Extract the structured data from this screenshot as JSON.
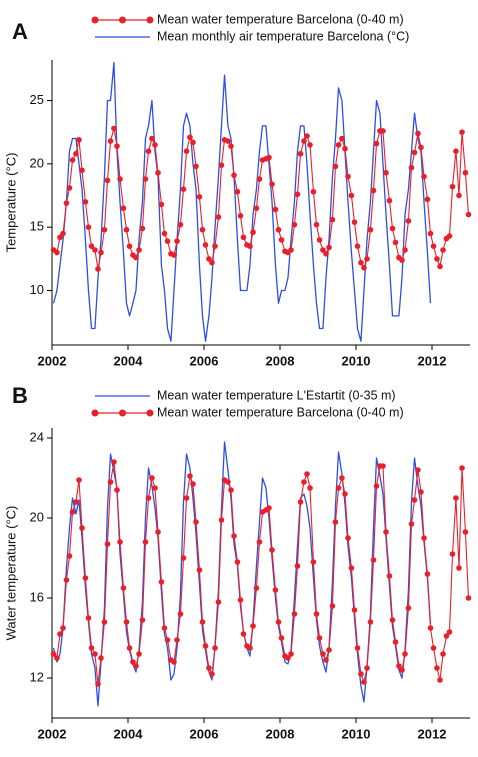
{
  "chart_data": [
    {
      "type": "line",
      "panel_label": "A",
      "y_label": "Temperature (°C)",
      "legend": "top",
      "xlim": [
        2002,
        2013
      ],
      "xticks": [
        2002,
        2004,
        2006,
        2008,
        2010,
        2012
      ],
      "ylim": [
        5.7,
        28.2
      ],
      "yticks": [
        10,
        15,
        20,
        25
      ],
      "x": [
        2002.04,
        2002.13,
        2002.21,
        2002.29,
        2002.38,
        2002.46,
        2002.54,
        2002.63,
        2002.71,
        2002.79,
        2002.88,
        2002.96,
        2003.04,
        2003.13,
        2003.21,
        2003.29,
        2003.38,
        2003.46,
        2003.54,
        2003.63,
        2003.71,
        2003.79,
        2003.88,
        2003.96,
        2004.04,
        2004.13,
        2004.21,
        2004.29,
        2004.38,
        2004.46,
        2004.54,
        2004.63,
        2004.71,
        2004.79,
        2004.88,
        2004.96,
        2005.04,
        2005.13,
        2005.21,
        2005.29,
        2005.38,
        2005.46,
        2005.54,
        2005.63,
        2005.71,
        2005.79,
        2005.88,
        2005.96,
        2006.04,
        2006.13,
        2006.21,
        2006.29,
        2006.38,
        2006.46,
        2006.54,
        2006.63,
        2006.71,
        2006.79,
        2006.88,
        2006.96,
        2007.04,
        2007.13,
        2007.21,
        2007.29,
        2007.38,
        2007.46,
        2007.54,
        2007.63,
        2007.71,
        2007.79,
        2007.88,
        2007.96,
        2008.04,
        2008.13,
        2008.21,
        2008.29,
        2008.38,
        2008.46,
        2008.54,
        2008.63,
        2008.71,
        2008.79,
        2008.88,
        2008.96,
        2009.04,
        2009.13,
        2009.21,
        2009.29,
        2009.38,
        2009.46,
        2009.54,
        2009.63,
        2009.71,
        2009.79,
        2009.88,
        2009.96,
        2010.04,
        2010.13,
        2010.21,
        2010.29,
        2010.38,
        2010.46,
        2010.54,
        2010.63,
        2010.71,
        2010.79,
        2010.88,
        2010.96,
        2011.04,
        2011.13,
        2011.21,
        2011.29,
        2011.38,
        2011.46,
        2011.54,
        2011.63,
        2011.71,
        2011.79,
        2011.88,
        2011.96,
        2012.04,
        2012.13,
        2012.21,
        2012.29,
        2012.38,
        2012.46,
        2012.54,
        2012.63,
        2012.71,
        2012.79,
        2012.88,
        2012.96
      ],
      "series": [
        {
          "name": "Mean water temperature Barcelona (0-40 m)",
          "color": "#e8202a",
          "marker": "circle",
          "values": [
            13.2,
            13.0,
            14.2,
            14.5,
            16.9,
            18.1,
            20.3,
            20.8,
            21.9,
            19.5,
            17,
            15,
            13.5,
            13.2,
            11.7,
            13,
            14.8,
            18.7,
            21.8,
            22.8,
            21.4,
            18.8,
            16.5,
            14.8,
            13.5,
            12.8,
            12.6,
            13.2,
            14.9,
            18.8,
            21,
            22,
            21.5,
            19.3,
            16.8,
            14.5,
            13.9,
            12.9,
            12.8,
            13.9,
            15.2,
            18,
            21,
            22.1,
            21.7,
            19.8,
            17.4,
            14.8,
            13.6,
            12.5,
            12.2,
            13.5,
            15.8,
            19.9,
            21.9,
            21.8,
            21.4,
            19.1,
            17.8,
            15.9,
            14.2,
            13.6,
            13.5,
            14.6,
            16.5,
            18.8,
            20.3,
            20.4,
            20.5,
            18.4,
            16.4,
            14.8,
            14,
            13.1,
            13,
            13.2,
            15.2,
            17.6,
            20.8,
            21.8,
            22.2,
            21.5,
            17.8,
            15.2,
            14,
            13.2,
            12.9,
            13.4,
            15.6,
            19.8,
            21.5,
            22,
            21.2,
            19,
            17.5,
            15.4,
            13.5,
            12.2,
            11.8,
            12.5,
            14.8,
            17.9,
            21.6,
            22.6,
            22.6,
            19.3,
            17.1,
            14.9,
            13.8,
            12.6,
            12.4,
            13.2,
            15.5,
            19.7,
            20.9,
            22.4,
            21.3,
            19,
            17.2,
            14.5,
            13.5,
            12.5,
            11.9,
            13.2,
            14.1,
            14.3,
            18.2,
            21.0,
            17.5,
            22.5,
            19.3,
            16.0
          ]
        },
        {
          "name": "Mean monthly air temperature Barcelona (°C)",
          "color": "#2d4fe0",
          "values": [
            9,
            10,
            12,
            14,
            17,
            21,
            22,
            22,
            20,
            18,
            14,
            10,
            7,
            7,
            11,
            14,
            19,
            25,
            25,
            28,
            21,
            17,
            13,
            9,
            8,
            9,
            10,
            14,
            17,
            22,
            23,
            25,
            21,
            19,
            12,
            10,
            7,
            6,
            10,
            14,
            18,
            23,
            24,
            23,
            20,
            18,
            12,
            8,
            6,
            8,
            11,
            15,
            19,
            23,
            27,
            23,
            22,
            19,
            14,
            10,
            10,
            10,
            12,
            16,
            18,
            21,
            23,
            23,
            20,
            17,
            12,
            9,
            10,
            10,
            11,
            14,
            17,
            21,
            23,
            23,
            20,
            16,
            12,
            9,
            7,
            7,
            11,
            14,
            19,
            22,
            26,
            25,
            21,
            17,
            13,
            10,
            7,
            6,
            10,
            14,
            17,
            21,
            25,
            24,
            20,
            16,
            12,
            8,
            8,
            8,
            11,
            16,
            18,
            21,
            24,
            22,
            21,
            17,
            13,
            9,
            null,
            null,
            null,
            null,
            null,
            null,
            null,
            null,
            null,
            null,
            null,
            null
          ]
        }
      ]
    },
    {
      "type": "line",
      "panel_label": "B",
      "y_label": "Water temperature (°C)",
      "legend": "top",
      "xlim": [
        2002,
        2013
      ],
      "xticks": [
        2002,
        2004,
        2006,
        2008,
        2010,
        2012
      ],
      "ylim": [
        10,
        24.5
      ],
      "yticks": [
        12,
        16,
        20,
        24
      ],
      "x": [
        2002.04,
        2002.13,
        2002.21,
        2002.29,
        2002.38,
        2002.46,
        2002.54,
        2002.63,
        2002.71,
        2002.79,
        2002.88,
        2002.96,
        2003.04,
        2003.13,
        2003.21,
        2003.29,
        2003.38,
        2003.46,
        2003.54,
        2003.63,
        2003.71,
        2003.79,
        2003.88,
        2003.96,
        2004.04,
        2004.13,
        2004.21,
        2004.29,
        2004.38,
        2004.46,
        2004.54,
        2004.63,
        2004.71,
        2004.79,
        2004.88,
        2004.96,
        2005.04,
        2005.13,
        2005.21,
        2005.29,
        2005.38,
        2005.46,
        2005.54,
        2005.63,
        2005.71,
        2005.79,
        2005.88,
        2005.96,
        2006.04,
        2006.13,
        2006.21,
        2006.29,
        2006.38,
        2006.46,
        2006.54,
        2006.63,
        2006.71,
        2006.79,
        2006.88,
        2006.96,
        2007.04,
        2007.13,
        2007.21,
        2007.29,
        2007.38,
        2007.46,
        2007.54,
        2007.63,
        2007.71,
        2007.79,
        2007.88,
        2007.96,
        2008.04,
        2008.13,
        2008.21,
        2008.29,
        2008.38,
        2008.46,
        2008.54,
        2008.63,
        2008.71,
        2008.79,
        2008.88,
        2008.96,
        2009.04,
        2009.13,
        2009.21,
        2009.29,
        2009.38,
        2009.46,
        2009.54,
        2009.63,
        2009.71,
        2009.79,
        2009.88,
        2009.96,
        2010.04,
        2010.13,
        2010.21,
        2010.29,
        2010.38,
        2010.46,
        2010.54,
        2010.63,
        2010.71,
        2010.79,
        2010.88,
        2010.96,
        2011.04,
        2011.13,
        2011.21,
        2011.29,
        2011.38,
        2011.46,
        2011.54,
        2011.63,
        2011.71,
        2011.79,
        2011.88,
        2011.96,
        2012.04,
        2012.13,
        2012.21,
        2012.29,
        2012.38,
        2012.46,
        2012.54,
        2012.63,
        2012.71,
        2012.79,
        2012.88,
        2012.96
      ],
      "series": [
        {
          "name": "Mean water temperature L'Estartit (0-35 m)",
          "color": "#2d4fe0",
          "values": [
            13.5,
            12.8,
            13.2,
            14.5,
            17.5,
            19.5,
            21,
            20.2,
            20.9,
            19,
            16.5,
            14.8,
            13.2,
            12.5,
            10.6,
            12.8,
            15.5,
            20.5,
            23.2,
            22.3,
            21.5,
            18.2,
            16.2,
            14.3,
            13.4,
            12.7,
            12.3,
            13.4,
            15.8,
            20,
            22.5,
            21.6,
            20.5,
            19,
            16.3,
            14.2,
            13.5,
            11.9,
            12.2,
            13.5,
            16.2,
            20.8,
            23.2,
            22.5,
            21,
            19.2,
            16.7,
            14.4,
            13.4,
            12.3,
            11.9,
            13.6,
            16.4,
            20.5,
            23.8,
            22.4,
            21,
            18.7,
            17.6,
            15.6,
            14.3,
            13.5,
            13.1,
            14.8,
            17.6,
            19.8,
            22,
            21.5,
            20,
            18,
            16,
            14.6,
            13.8,
            12.8,
            12.7,
            13.4,
            16,
            18.6,
            21,
            21.2,
            20.6,
            19.5,
            17,
            14.9,
            13.6,
            12.8,
            12.3,
            13.5,
            16.8,
            20.6,
            23.3,
            22.2,
            20.7,
            18.6,
            17,
            15,
            13.2,
            11.6,
            10.8,
            12.6,
            15.2,
            19.5,
            23,
            22.1,
            21.2,
            19,
            16.6,
            14.6,
            13.6,
            12.4,
            12,
            13.4,
            16.4,
            20.8,
            23,
            21.6,
            20.6,
            18.8,
            17,
            14.7,
            null,
            null,
            null,
            null,
            null,
            null,
            null,
            null,
            null,
            null,
            null,
            null
          ]
        },
        {
          "name": "Mean water temperature Barcelona (0-40 m)",
          "color": "#e8202a",
          "marker": "circle",
          "values": [
            13.2,
            13.0,
            14.2,
            14.5,
            16.9,
            18.1,
            20.3,
            20.8,
            21.9,
            19.5,
            17,
            15,
            13.5,
            13.2,
            11.7,
            13,
            14.8,
            18.7,
            21.8,
            22.8,
            21.4,
            18.8,
            16.5,
            14.8,
            13.5,
            12.8,
            12.6,
            13.2,
            14.9,
            18.8,
            21,
            22,
            21.5,
            19.3,
            16.8,
            14.5,
            13.9,
            12.9,
            12.8,
            13.9,
            15.2,
            18,
            21,
            22.1,
            21.7,
            19.8,
            17.4,
            14.8,
            13.6,
            12.5,
            12.2,
            13.5,
            15.8,
            19.9,
            21.9,
            21.8,
            21.4,
            19.1,
            17.8,
            15.9,
            14.2,
            13.6,
            13.5,
            14.6,
            16.5,
            18.8,
            20.3,
            20.4,
            20.5,
            18.4,
            16.4,
            14.8,
            14,
            13.1,
            13,
            13.2,
            15.2,
            17.6,
            20.8,
            21.8,
            22.2,
            21.5,
            17.8,
            15.2,
            14,
            13.2,
            12.9,
            13.4,
            15.6,
            19.8,
            21.5,
            22,
            21.2,
            19,
            17.5,
            15.4,
            13.5,
            12.2,
            11.8,
            12.5,
            14.8,
            17.9,
            21.6,
            22.6,
            22.6,
            19.3,
            17.1,
            14.9,
            13.8,
            12.6,
            12.4,
            13.2,
            15.5,
            19.7,
            20.9,
            22.4,
            21.3,
            19,
            17.2,
            14.5,
            13.5,
            12.5,
            11.9,
            13.2,
            14.1,
            14.3,
            18.2,
            21.0,
            17.5,
            22.5,
            19.3,
            16.0
          ]
        }
      ]
    }
  ]
}
